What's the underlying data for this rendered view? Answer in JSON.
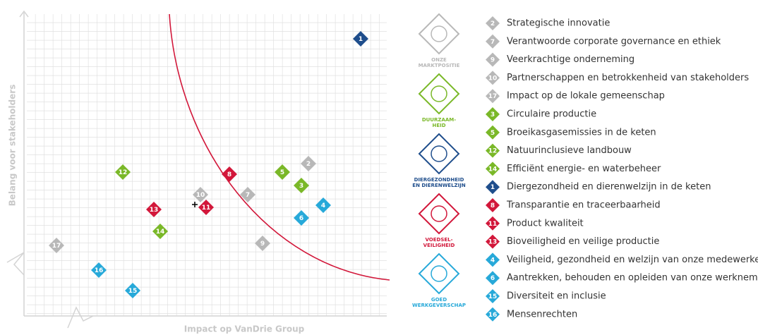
{
  "x_label": "Impact op VanDrie Group",
  "y_label": "Belang voor stakeholders",
  "points": [
    {
      "label": "1",
      "color": "#1f4e8c"
    },
    {
      "label": "2",
      "color": "#b8b8b8"
    },
    {
      "label": "5",
      "color": "#7ab828"
    },
    {
      "label": "8",
      "color": "#d2173a"
    },
    {
      "label": "3",
      "color": "#7ab828"
    },
    {
      "label": "4",
      "color": "#27a9d9"
    },
    {
      "label": "7",
      "color": "#b8b8b8"
    },
    {
      "label": "10",
      "color": "#b8b8b8"
    },
    {
      "label": "11",
      "color": "#d2173a"
    },
    {
      "label": "13",
      "color": "#d2173a"
    },
    {
      "label": "6",
      "color": "#27a9d9"
    },
    {
      "label": "14",
      "color": "#7ab828"
    },
    {
      "label": "12",
      "color": "#7ab828"
    },
    {
      "label": "9",
      "color": "#b8b8b8"
    },
    {
      "label": "17",
      "color": "#b8b8b8"
    },
    {
      "label": "16",
      "color": "#27a9d9"
    },
    {
      "label": "15",
      "color": "#27a9d9"
    }
  ],
  "icons": [
    {
      "lines": [
        "ONZE",
        "MARKTPOSITIE"
      ],
      "color": "#b8b8b8"
    },
    {
      "lines": [
        "DUURZAAM-",
        "HEID"
      ],
      "color": "#7ab828"
    },
    {
      "lines": [
        "DIERGEZONDHEID",
        "EN DIERENWELZIJN"
      ],
      "color": "#1f4e8c"
    },
    {
      "lines": [
        "VOEDSEL-",
        "VEILIGHEID"
      ],
      "color": "#d2173a"
    },
    {
      "lines": [
        "GOED",
        "WERKGEVERSCHAP"
      ],
      "color": "#27a9d9"
    }
  ],
  "legend": [
    {
      "number": "2",
      "text": "Strategische innovatie",
      "color": "#b8b8b8"
    },
    {
      "number": "7",
      "text": "Verantwoorde corporate governance en ethiek",
      "color": "#b8b8b8"
    },
    {
      "number": "9",
      "text": "Veerkrachtige onderneming",
      "color": "#b8b8b8"
    },
    {
      "number": "10",
      "text": "Partnerschappen en betrokkenheid van stakeholders",
      "color": "#b8b8b8"
    },
    {
      "number": "17",
      "text": "Impact op de lokale gemeenschap",
      "color": "#b8b8b8"
    },
    {
      "number": "3",
      "text": "Circulaire productie",
      "color": "#7ab828"
    },
    {
      "number": "5",
      "text": "Broeikasgasemissies in de keten",
      "color": "#7ab828"
    },
    {
      "number": "12",
      "text": "Natuurinclusieve landbouw",
      "color": "#7ab828"
    },
    {
      "number": "14",
      "text": "Efficiënt energie- en waterbeheer",
      "color": "#7ab828"
    },
    {
      "number": "1",
      "text": "Diergezondheid en dierenwelzijn in de keten",
      "color": "#1f4e8c"
    },
    {
      "number": "8",
      "text": "Transparantie en traceerbaarheid",
      "color": "#d2173a"
    },
    {
      "number": "11",
      "text": "Product kwaliteit",
      "color": "#d2173a"
    },
    {
      "number": "13",
      "text": "Bioveiligheid en veilige productie",
      "color": "#d2173a"
    },
    {
      "number": "4",
      "text": "Veiligheid, gezondheid en welzijn van onze medewerkers",
      "color": "#27a9d9"
    },
    {
      "number": "6",
      "text": "Aantrekken, behouden en opleiden van onze werknemers",
      "color": "#27a9d9"
    },
    {
      "number": "15",
      "text": "Diversiteit en inclusie",
      "color": "#27a9d9"
    },
    {
      "number": "16",
      "text": "Mensenrechten",
      "color": "#27a9d9"
    }
  ]
}
